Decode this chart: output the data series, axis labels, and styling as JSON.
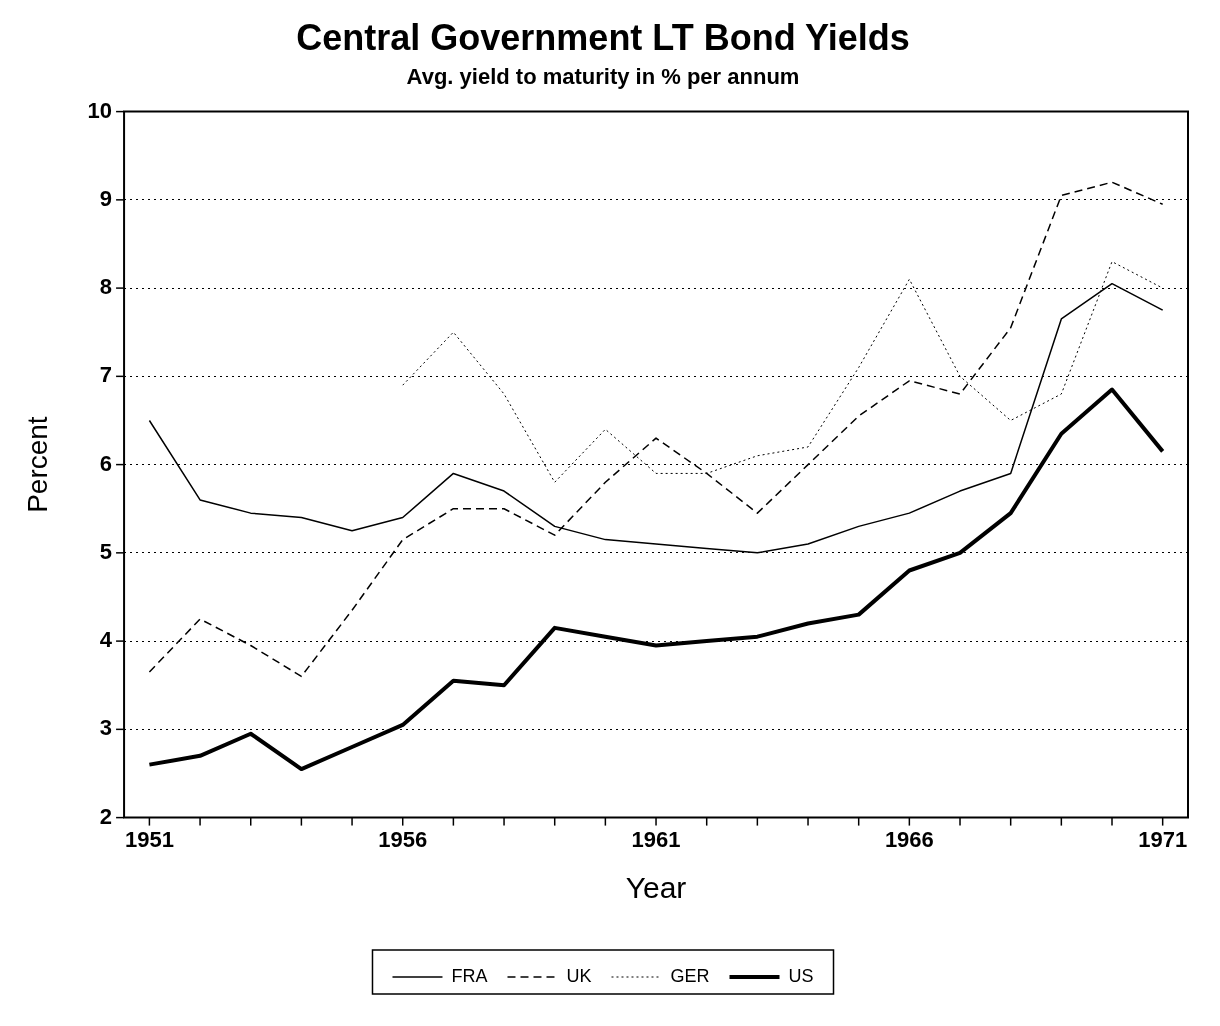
{
  "chart_data": {
    "type": "line",
    "title": "Central Government LT Bond Yields",
    "subtitle": "Avg. yield to maturity in % per annum",
    "xlabel": "Year",
    "ylabel": "Percent",
    "x": [
      1951,
      1952,
      1953,
      1954,
      1955,
      1956,
      1957,
      1958,
      1959,
      1960,
      1961,
      1962,
      1963,
      1964,
      1965,
      1966,
      1967,
      1968,
      1969,
      1970,
      1971
    ],
    "series": [
      {
        "name": "FRA",
        "color": "#000000",
        "line_style": "solid",
        "values": [
          6.5,
          5.6,
          5.45,
          5.4,
          5.25,
          5.4,
          5.9,
          5.7,
          5.3,
          5.15,
          5.1,
          5.05,
          5.0,
          5.1,
          5.3,
          5.45,
          5.7,
          5.9,
          7.65,
          8.05,
          7.75
        ]
      },
      {
        "name": "UK",
        "color": "#000000",
        "line_style": "dashed",
        "values": [
          3.65,
          4.25,
          3.95,
          3.6,
          4.35,
          5.15,
          5.5,
          5.5,
          5.2,
          5.8,
          6.3,
          5.9,
          5.45,
          6.0,
          6.55,
          6.95,
          6.8,
          7.55,
          9.05,
          9.2,
          8.95
        ]
      },
      {
        "name": "GER",
        "color": "#000000",
        "line_style": "dotted",
        "values": [
          null,
          null,
          null,
          null,
          null,
          6.9,
          7.5,
          6.8,
          5.8,
          6.4,
          5.9,
          5.9,
          6.1,
          6.2,
          7.1,
          8.1,
          7.0,
          6.5,
          6.8,
          8.3,
          8.0
        ]
      },
      {
        "name": "US",
        "color": "#000000",
        "line_style": "solid",
        "values": [
          2.6,
          2.7,
          2.95,
          2.55,
          2.8,
          3.05,
          3.55,
          3.5,
          4.15,
          4.05,
          3.95,
          4.0,
          4.05,
          4.2,
          4.3,
          4.8,
          5.0,
          5.45,
          6.35,
          6.85,
          6.15
        ]
      }
    ],
    "xlim": [
      1950.5,
      1971.5
    ],
    "xticks": [
      1951,
      {
        "value": 1952,
        "label": null
      },
      {
        "value": 1953,
        "label": null
      },
      {
        "value": 1954,
        "label": null
      },
      {
        "value": 1955,
        "label": null
      },
      1956,
      {
        "value": 1957,
        "label": null
      },
      {
        "value": 1958,
        "label": null
      },
      {
        "value": 1959,
        "label": null
      },
      {
        "value": 1960,
        "label": null
      },
      1961,
      {
        "value": 1962,
        "label": null
      },
      {
        "value": 1963,
        "label": null
      },
      {
        "value": 1964,
        "label": null
      },
      {
        "value": 1965,
        "label": null
      },
      1966,
      {
        "value": 1967,
        "label": null
      },
      {
        "value": 1968,
        "label": null
      },
      {
        "value": 1969,
        "label": null
      },
      {
        "value": 1970,
        "label": null
      },
      1971
    ],
    "ylim": [
      2,
      10
    ],
    "yticks": [
      2,
      3,
      4,
      5,
      6,
      7,
      8,
      9,
      10
    ],
    "grid": "y",
    "legend": "bottom",
    "marker": "none"
  }
}
